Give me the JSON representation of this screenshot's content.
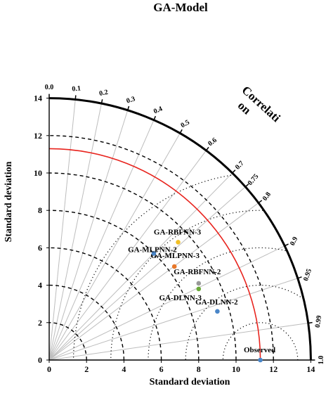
{
  "chart_data": {
    "type": "taylor-diagram",
    "title": "GA-Model",
    "xlabel": "Standard deviation",
    "ylabel": "Standard deviation",
    "correlation_label": [
      "Correlati",
      "on"
    ],
    "std_range": [
      0,
      14
    ],
    "std_ticks": [
      0,
      2,
      4,
      6,
      8,
      10,
      12,
      14
    ],
    "correlation_ticks": [
      0.0,
      0.1,
      0.2,
      0.3,
      0.4,
      0.5,
      0.6,
      0.7,
      0.75,
      0.8,
      0.9,
      0.95,
      0.99,
      1.0
    ],
    "correlation_tick_labels": [
      "0.0",
      "0.1",
      "0.2",
      "0.3",
      "0.4",
      "0.5",
      "0.6",
      "0.7",
      "0.75",
      "0.8",
      "0.9",
      "0.95",
      "0.99",
      "1.0"
    ],
    "reference_std": 11.3,
    "std_dashed_arcs": [
      2,
      4,
      6,
      8,
      10,
      12
    ],
    "rms_dotted_arcs": [
      2,
      4,
      6,
      8,
      10
    ],
    "points": [
      {
        "name": "Observed",
        "x": 11.3,
        "y": 0,
        "color": "#4a86c8"
      },
      {
        "name": "GA-DLNN-2",
        "x": 9.0,
        "y": 2.6,
        "color": "#4a86c8"
      },
      {
        "name": "GA-DLNN-3",
        "x": 8.0,
        "y": 3.8,
        "color": "#6aaa3a"
      },
      {
        "name": "GA-RBFNN-2",
        "x": 8.0,
        "y": 4.1,
        "color": "#999999"
      },
      {
        "name": "GA-MLPNN-3",
        "x": 6.7,
        "y": 5.0,
        "color": "#e8782a"
      },
      {
        "name": "GA-MLPNN-2",
        "x": 5.6,
        "y": 5.7,
        "color": "#4a86c8"
      },
      {
        "name": "GA-RBFNN-3",
        "x": 6.9,
        "y": 6.3,
        "color": "#f2c026"
      }
    ],
    "colors": {
      "reference_arc": "#e8231d",
      "correlation_rays": "#bdbdbd"
    }
  }
}
